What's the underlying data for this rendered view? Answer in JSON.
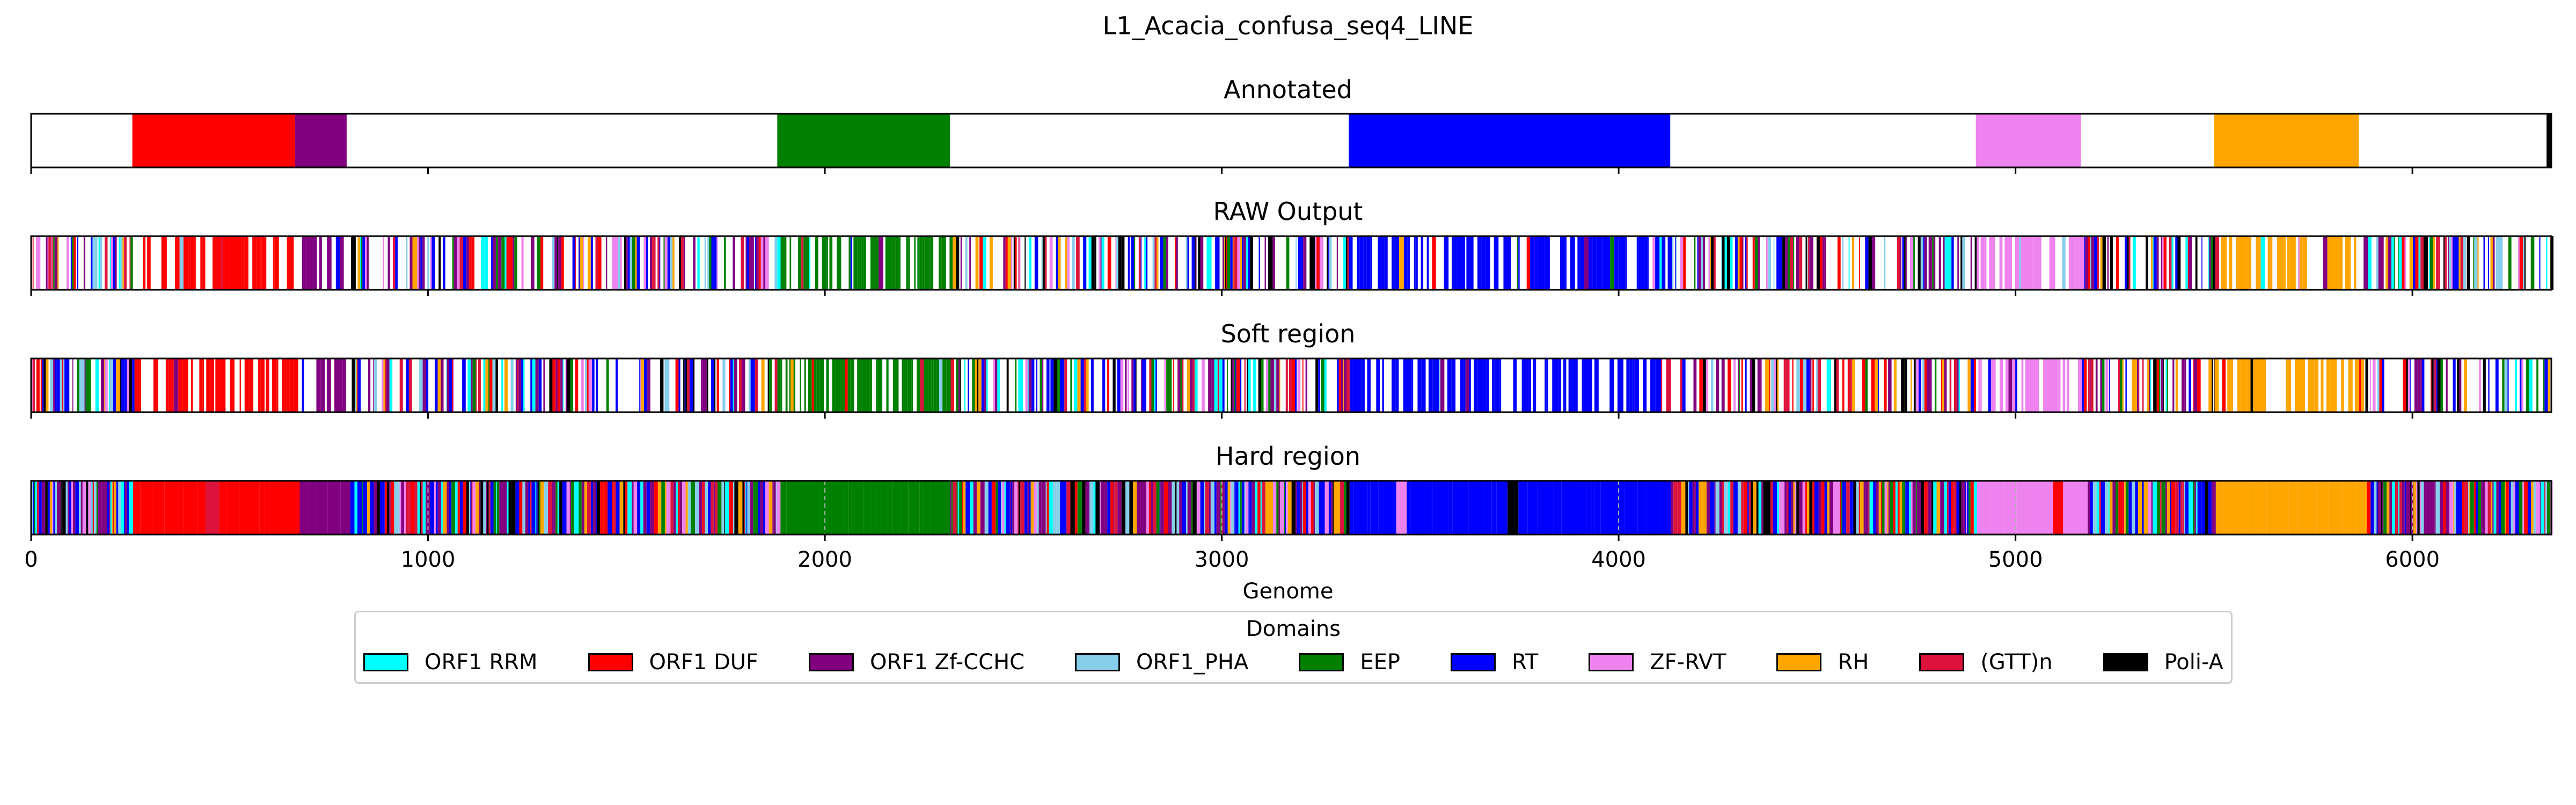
{
  "chart_data": {
    "type": "genome-track",
    "title": "L1_Acacia_confusa_seq4_LINE",
    "xlabel": "Genome",
    "xlim": [
      0,
      6350
    ],
    "xticks": [
      0,
      1000,
      2000,
      3000,
      4000,
      5000,
      6000
    ],
    "xtick_labels": [
      "0",
      "1000",
      "2000",
      "3000",
      "4000",
      "5000",
      "6000"
    ],
    "legend": {
      "title": "Domains",
      "placement": "below",
      "entries": [
        {
          "name": "ORF1 RRM",
          "color": "#00ffff"
        },
        {
          "name": "ORF1 DUF",
          "color": "#ff0000"
        },
        {
          "name": "ORF1 Zf-CCHC",
          "color": "#800080"
        },
        {
          "name": "ORF1_PHA",
          "color": "#87ceeb"
        },
        {
          "name": "EEP",
          "color": "#008000"
        },
        {
          "name": "RT",
          "color": "#0000ff"
        },
        {
          "name": "ZF-RVT",
          "color": "#ee82ee"
        },
        {
          "name": "RH",
          "color": "#ffa500"
        },
        {
          "name": "(GTT)n",
          "color": "#dc143c"
        },
        {
          "name": "Poli-A",
          "color": "#000000"
        }
      ]
    },
    "tracks": [
      {
        "name": "Annotated",
        "segments": [
          {
            "domain": "ORF1 DUF",
            "start": 255,
            "end": 665
          },
          {
            "domain": "ORF1 Zf-CCHC",
            "start": 665,
            "end": 795
          },
          {
            "domain": "EEP",
            "start": 1880,
            "end": 2315
          },
          {
            "domain": "RT",
            "start": 3320,
            "end": 4130
          },
          {
            "domain": "ZF-RVT",
            "start": 4900,
            "end": 5165
          },
          {
            "domain": "RH",
            "start": 5500,
            "end": 5865
          },
          {
            "domain": "Poli-A",
            "start": 6338,
            "end": 6350
          }
        ]
      },
      {
        "name": "RAW Output",
        "style": "raw",
        "seed": 11
      },
      {
        "name": "Soft region",
        "style": "raw",
        "seed": 23
      },
      {
        "name": "Hard region",
        "style": "hard",
        "seed": 37
      }
    ]
  }
}
